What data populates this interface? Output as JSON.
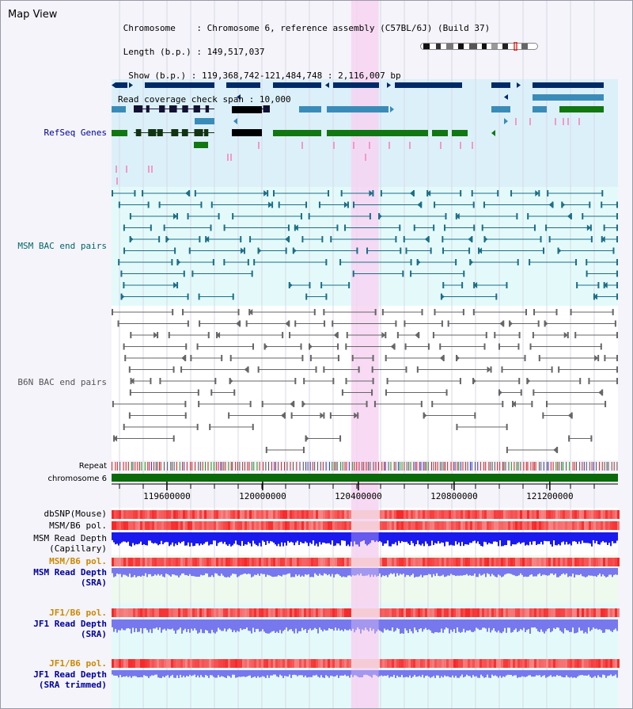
{
  "title": "Map View",
  "info": {
    "chromosome_label": "Chromosome   ",
    "chromosome_value": "Chromosome 6, reference assembly (C57BL/6J) (Build 37)",
    "length_label": "Length (b.p.)",
    "length_value": "149,517,037",
    "show_label": " Show (b.p.)",
    "show_value": "119,368,742-121,484,748 : 2,116,007 bp",
    "coverage_label": "Read coverage check span",
    "coverage_value": "10,000"
  },
  "view": {
    "start": 119368742,
    "end": 121484748,
    "highlight_start": 120370000,
    "highlight_end": 120485000
  },
  "axis": {
    "ticks": [
      119600000,
      120000000,
      120400000,
      120800000,
      121200000
    ]
  },
  "tracks": [
    {
      "key": "refseq",
      "label": "RefSeq Genes",
      "color": "#000099",
      "bold": false
    },
    {
      "key": "msm_bac",
      "label": "MSM BAC end pairs",
      "color": "#006666",
      "bold": false
    },
    {
      "key": "b6n_bac",
      "label": "B6N BAC end pairs",
      "color": "#555555",
      "bold": false
    },
    {
      "key": "repeat",
      "label": "Repeat",
      "color": "#000000",
      "bold": false,
      "small": true
    },
    {
      "key": "chromosome",
      "label": "chromosome 6",
      "color": "#000000",
      "bold": false,
      "small": true
    },
    {
      "key": "dbsnp",
      "label": "dbSNP(Mouse)",
      "color": "#000000",
      "bold": false
    },
    {
      "key": "msm_pol",
      "label": "MSM/B6 pol.",
      "color": "#000000",
      "bold": false
    },
    {
      "key": "msm_depth_cap_1",
      "label": "MSM Read Depth",
      "color": "#000000",
      "bold": false
    },
    {
      "key": "msm_depth_cap_2",
      "label": "(Capillary)",
      "color": "#000000",
      "bold": false
    },
    {
      "key": "msm_pol2",
      "label": "MSM/B6 pol.",
      "color": "#cc8800",
      "bold": true
    },
    {
      "key": "msm_depth_sra_1",
      "label": "MSM Read Depth",
      "color": "#000099",
      "bold": true
    },
    {
      "key": "msm_depth_sra_2",
      "label": "(SRA)",
      "color": "#000099",
      "bold": true
    },
    {
      "key": "jf1_pol",
      "label": "JF1/B6 pol.",
      "color": "#cc8800",
      "bold": true
    },
    {
      "key": "jf1_depth_1",
      "label": "JF1 Read Depth",
      "color": "#000099",
      "bold": true
    },
    {
      "key": "jf1_depth_2",
      "label": "(SRA)",
      "color": "#000099",
      "bold": true
    },
    {
      "key": "jf1_pol2",
      "label": "JF1/B6 pol.",
      "color": "#cc8800",
      "bold": true
    },
    {
      "key": "jf1_trim_1",
      "label": "JF1 Read Depth",
      "color": "#000099",
      "bold": true
    },
    {
      "key": "jf1_trim_2",
      "label": "(SRA trimmed)",
      "color": "#000099",
      "bold": true
    }
  ],
  "colors": {
    "refseq_bg": "#dcf0fa",
    "msm_bg": "#e4fafa",
    "highlight": "#f7d4f2",
    "gene_dark": "#002a66",
    "gene_mid": "#3a8cb8",
    "gene_green": "#117711",
    "msm_feature": "#1c6e88",
    "b6n_feature": "#666666",
    "chromosome_bar": "#0a6a0a",
    "depth_blue": "#1a1aee",
    "depth_light": "#7777ee",
    "pol_red": "#ee3333"
  }
}
